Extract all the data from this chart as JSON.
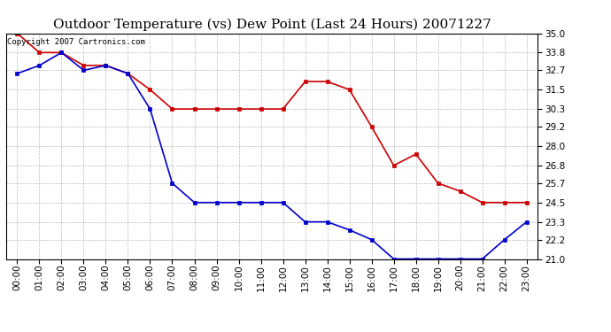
{
  "title": "Outdoor Temperature (vs) Dew Point (Last 24 Hours) 20071227",
  "copyright_text": "Copyright 2007 Cartronics.com",
  "x_labels": [
    "00:00",
    "01:00",
    "02:00",
    "03:00",
    "04:00",
    "05:00",
    "06:00",
    "07:00",
    "08:00",
    "09:00",
    "10:00",
    "11:00",
    "12:00",
    "13:00",
    "14:00",
    "15:00",
    "16:00",
    "17:00",
    "18:00",
    "19:00",
    "20:00",
    "21:00",
    "22:00",
    "23:00"
  ],
  "temp_data": [
    35.0,
    33.8,
    33.8,
    33.0,
    33.0,
    32.5,
    31.5,
    30.3,
    30.3,
    30.3,
    30.3,
    30.3,
    30.3,
    32.0,
    32.0,
    31.5,
    29.2,
    26.8,
    27.5,
    25.7,
    25.2,
    24.5,
    24.5,
    24.5
  ],
  "dew_data": [
    32.5,
    33.0,
    33.8,
    32.7,
    33.0,
    32.5,
    30.3,
    25.7,
    24.5,
    24.5,
    24.5,
    24.5,
    24.5,
    23.3,
    23.3,
    22.8,
    22.2,
    21.0,
    21.0,
    21.0,
    21.0,
    21.0,
    22.2,
    23.3
  ],
  "ylim": [
    21.0,
    35.0
  ],
  "yticks": [
    21.0,
    22.2,
    23.3,
    24.5,
    25.7,
    26.8,
    28.0,
    29.2,
    30.3,
    31.5,
    32.7,
    33.8,
    35.0
  ],
  "temp_color": "#cc0000",
  "dew_color": "#0000cc",
  "grid_color": "#bbbbbb",
  "bg_color": "#ffffff",
  "title_fontsize": 11,
  "copyright_fontsize": 6.5,
  "tick_fontsize": 7.5
}
